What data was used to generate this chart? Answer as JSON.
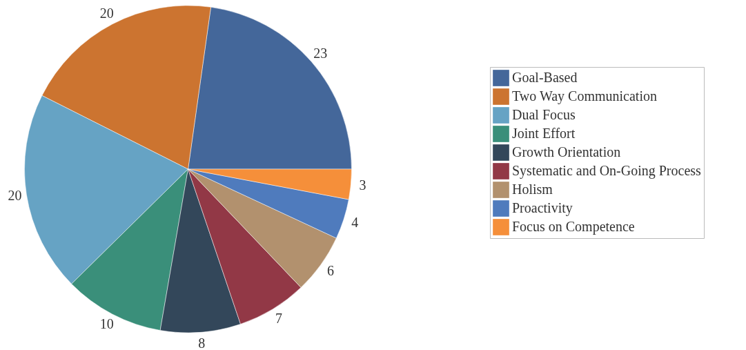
{
  "chart_data": {
    "type": "pie",
    "categories": [
      "Goal-Based",
      "Two Way Communication",
      "Dual Focus",
      "Joint Effort",
      "Growth Orientation",
      "Systematic and On-Going Process",
      "Holism",
      "Proactivity",
      "Focus on Competence"
    ],
    "values": [
      23,
      20,
      20,
      10,
      8,
      7,
      6,
      4,
      3
    ],
    "colors": [
      "#44679a",
      "#cc7430",
      "#66a3c4",
      "#3a8f7a",
      "#33475a",
      "#923846",
      "#b2916e",
      "#4f7bbd",
      "#f58f3a"
    ],
    "data_labels": true,
    "legend": "right"
  }
}
